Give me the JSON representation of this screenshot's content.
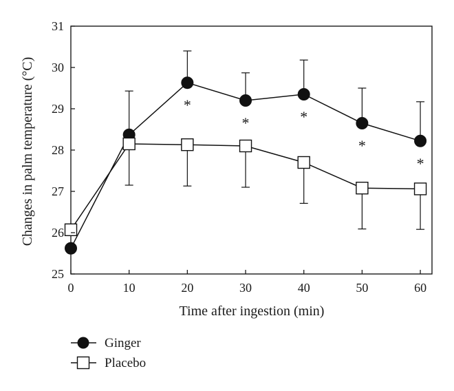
{
  "chart_data": {
    "type": "line",
    "xlabel": "Time after ingestion (min)",
    "ylabel": "Changes in palm temperature (°C)",
    "xlim": [
      0,
      62
    ],
    "ylim": [
      25,
      31
    ],
    "x": [
      0,
      10,
      20,
      30,
      40,
      50,
      60
    ],
    "xticks": [
      0,
      10,
      20,
      30,
      40,
      50,
      60
    ],
    "yticks": [
      25,
      26,
      27,
      28,
      29,
      30,
      31
    ],
    "grid": false,
    "legend_position": "bottom-left, below plot",
    "series": [
      {
        "name": "Ginger",
        "marker": "filled-circle",
        "color": "#111111",
        "values": [
          25.62,
          28.37,
          29.63,
          29.2,
          29.35,
          28.65,
          28.22
        ],
        "error": [
          0,
          1.06,
          0.77,
          0.67,
          0.83,
          0.85,
          0.95
        ],
        "significance": [
          "",
          "",
          "*",
          "*",
          "*",
          "*",
          "*"
        ]
      },
      {
        "name": "Placebo",
        "marker": "open-square",
        "color": "#111111",
        "values": [
          26.07,
          28.15,
          28.13,
          28.1,
          27.7,
          27.08,
          27.06
        ],
        "error": [
          0,
          1.0,
          1.0,
          1.0,
          0.99,
          0.99,
          0.98
        ]
      }
    ]
  }
}
